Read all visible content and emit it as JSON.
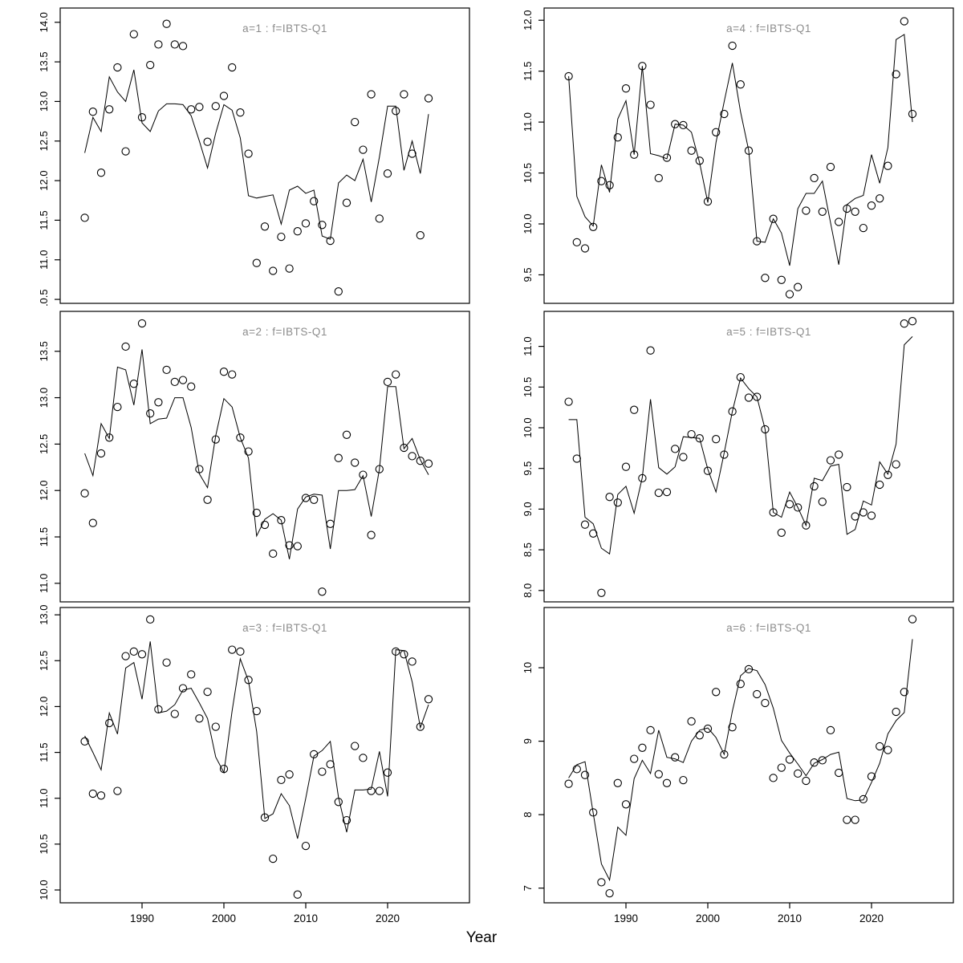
{
  "figure": {
    "xlabel": "Year"
  },
  "chart_data": {
    "type": "line",
    "grid": "3 rows x 2 columns, shared Year axis",
    "xlabel": "Year",
    "x": [
      1983,
      1984,
      1985,
      1986,
      1987,
      1988,
      1989,
      1990,
      1991,
      1992,
      1993,
      1994,
      1995,
      1996,
      1997,
      1998,
      1999,
      2000,
      2001,
      2002,
      2003,
      2004,
      2005,
      2006,
      2007,
      2008,
      2009,
      2010,
      2011,
      2012,
      2013,
      2014,
      2015,
      2016,
      2017,
      2018,
      2019,
      2020,
      2021,
      2022,
      2023,
      2024,
      2025
    ],
    "x_ticks": [
      1990,
      2000,
      2010,
      2020
    ],
    "x_range": [
      1980,
      2030
    ],
    "legend": {
      "points": "observed survey index (open circles)",
      "line": "fitted values (solid line)"
    },
    "panels": [
      {
        "title": "a=1 : f=IBTS-Q1",
        "ylim": [
          10.45,
          14.18
        ],
        "yticks": [
          "10.5",
          "11.0",
          "11.5",
          "12.0",
          "12.5",
          "13.0",
          "13.5",
          "14.0"
        ],
        "observed": [
          11.53,
          12.87,
          12.1,
          12.9,
          13.43,
          12.37,
          13.85,
          12.8,
          13.46,
          13.72,
          13.98,
          13.72,
          13.7,
          12.9,
          12.93,
          12.49,
          12.94,
          13.07,
          13.43,
          12.86,
          12.34,
          10.96,
          11.42,
          10.86,
          11.29,
          10.89,
          11.36,
          11.46,
          11.74,
          11.44,
          11.24,
          10.6,
          11.72,
          12.74,
          12.39,
          13.09,
          11.52,
          12.09,
          12.88,
          13.09,
          12.34,
          11.31,
          13.04
        ],
        "fitted": [
          12.35,
          12.8,
          12.62,
          13.31,
          13.12,
          13.0,
          13.4,
          12.73,
          12.62,
          12.88,
          12.97,
          12.97,
          12.96,
          12.82,
          12.5,
          12.16,
          12.6,
          12.96,
          12.89,
          12.54,
          11.81,
          11.78,
          11.8,
          11.82,
          11.45,
          11.88,
          11.93,
          11.84,
          11.88,
          11.3,
          11.26,
          11.97,
          12.07,
          12.0,
          12.27,
          11.73,
          12.3,
          12.94,
          12.94,
          12.13,
          12.5,
          12.09,
          12.84
        ]
      },
      {
        "title": "a=2 : f=IBTS-Q1",
        "ylim": [
          10.8,
          13.93
        ],
        "yticks": [
          "11.0",
          "11.5",
          "12.0",
          "12.5",
          "13.0",
          "13.5"
        ],
        "observed": [
          11.97,
          11.65,
          12.4,
          12.57,
          12.9,
          13.55,
          13.15,
          13.8,
          12.83,
          12.95,
          13.3,
          13.17,
          13.19,
          13.12,
          12.23,
          11.9,
          12.55,
          13.28,
          13.25,
          12.57,
          12.42,
          11.76,
          11.63,
          11.32,
          11.68,
          11.41,
          11.4,
          11.92,
          11.9,
          10.91,
          11.64,
          12.35,
          12.6,
          12.3,
          12.17,
          11.52,
          12.23,
          13.17,
          13.25,
          12.46,
          12.37,
          12.32,
          12.29
        ],
        "fitted": [
          12.4,
          12.16,
          12.72,
          12.56,
          13.33,
          13.3,
          12.92,
          13.52,
          12.72,
          12.77,
          12.78,
          13.0,
          13.0,
          12.68,
          12.18,
          12.03,
          12.59,
          12.99,
          12.9,
          12.57,
          12.35,
          11.51,
          11.69,
          11.75,
          11.68,
          11.26,
          11.8,
          11.93,
          11.96,
          11.95,
          11.37,
          12.0,
          12.0,
          12.01,
          12.16,
          11.72,
          12.23,
          13.12,
          13.12,
          12.45,
          12.56,
          12.33,
          12.17
        ]
      },
      {
        "title": "a=3 : f=IBTS-Q1",
        "ylim": [
          9.86,
          13.08
        ],
        "yticks": [
          "10.0",
          "10.5",
          "11.0",
          "11.5",
          "12.0",
          "12.5",
          "13.0"
        ],
        "observed": [
          11.62,
          11.05,
          11.03,
          11.82,
          11.08,
          12.55,
          12.6,
          12.57,
          12.95,
          11.97,
          12.48,
          11.92,
          12.2,
          12.35,
          11.87,
          12.16,
          11.78,
          11.32,
          12.62,
          12.6,
          12.29,
          11.95,
          10.79,
          10.34,
          11.2,
          11.26,
          9.95,
          10.48,
          11.48,
          11.29,
          11.37,
          10.96,
          10.76,
          11.57,
          11.44,
          11.08,
          11.08,
          11.28,
          12.6,
          12.57,
          12.49,
          11.78,
          12.08
        ],
        "fitted": [
          11.68,
          11.5,
          11.31,
          11.93,
          11.7,
          12.42,
          12.48,
          12.08,
          12.71,
          11.93,
          11.95,
          12.02,
          12.18,
          12.2,
          12.04,
          11.87,
          11.45,
          11.28,
          11.95,
          12.52,
          12.28,
          11.73,
          10.78,
          10.83,
          11.05,
          10.92,
          10.56,
          11.0,
          11.46,
          11.52,
          11.62,
          11.01,
          10.63,
          11.09,
          11.09,
          11.1,
          11.51,
          11.02,
          12.62,
          12.61,
          12.27,
          11.77,
          12.02
        ]
      },
      {
        "title": "a=4 : f=IBTS-Q1",
        "ylim": [
          9.22,
          12.12
        ],
        "yticks": [
          "9.5",
          "10.0",
          "10.5",
          "11.0",
          "11.5",
          "12.0"
        ],
        "observed": [
          11.45,
          9.82,
          9.76,
          9.97,
          10.42,
          10.38,
          10.85,
          11.33,
          10.68,
          11.55,
          11.17,
          10.45,
          10.65,
          10.98,
          10.97,
          10.72,
          10.62,
          10.22,
          10.9,
          11.08,
          11.75,
          11.37,
          10.72,
          9.83,
          9.47,
          10.05,
          9.45,
          9.31,
          9.38,
          10.13,
          10.45,
          10.12,
          10.56,
          10.02,
          10.15,
          10.12,
          9.96,
          10.18,
          10.25,
          10.57,
          11.47,
          11.99,
          11.08
        ],
        "fitted": [
          11.45,
          10.27,
          10.07,
          9.98,
          10.58,
          10.31,
          11.03,
          11.21,
          10.68,
          11.55,
          10.69,
          10.67,
          10.64,
          10.98,
          10.97,
          10.9,
          10.6,
          10.21,
          10.8,
          11.2,
          11.58,
          11.1,
          10.72,
          9.83,
          9.82,
          10.05,
          9.91,
          9.59,
          10.15,
          10.3,
          10.3,
          10.42,
          10.01,
          9.6,
          10.19,
          10.25,
          10.28,
          10.68,
          10.4,
          10.75,
          11.81,
          11.86,
          11.0
        ]
      },
      {
        "title": "a=5 : f=IBTS-Q1",
        "ylim": [
          7.86,
          11.43
        ],
        "yticks": [
          "8.0",
          "8.5",
          "9.0",
          "9.5",
          "10.0",
          "10.5",
          "11.0"
        ],
        "observed": [
          10.32,
          9.62,
          8.81,
          8.7,
          7.97,
          9.15,
          9.08,
          9.52,
          10.22,
          9.38,
          10.95,
          9.2,
          9.21,
          9.74,
          9.64,
          9.92,
          9.87,
          9.47,
          9.86,
          9.67,
          10.2,
          10.62,
          10.37,
          10.38,
          9.98,
          8.96,
          8.71,
          9.06,
          9.02,
          8.8,
          9.28,
          9.09,
          9.6,
          9.67,
          9.27,
          8.91,
          8.96,
          8.92,
          9.3,
          9.42,
          9.55,
          11.28,
          11.31
        ],
        "fitted": [
          10.1,
          10.1,
          8.9,
          8.82,
          8.52,
          8.45,
          9.18,
          9.28,
          8.95,
          9.39,
          10.35,
          9.51,
          9.43,
          9.52,
          9.89,
          9.88,
          9.87,
          9.49,
          9.21,
          9.69,
          10.2,
          10.61,
          10.48,
          10.38,
          9.98,
          8.96,
          8.9,
          9.21,
          9.02,
          8.8,
          9.38,
          9.35,
          9.53,
          9.55,
          8.69,
          8.75,
          9.1,
          9.05,
          9.58,
          9.43,
          9.8,
          11.02,
          11.12
        ]
      },
      {
        "title": "a=6 : f=IBTS-Q1",
        "ylim": [
          6.8,
          10.82
        ],
        "yticks": [
          "7",
          "8",
          "9",
          "10"
        ],
        "observed": [
          8.42,
          8.62,
          8.54,
          8.03,
          7.08,
          6.93,
          8.43,
          8.14,
          8.76,
          8.91,
          9.15,
          8.55,
          8.43,
          8.78,
          8.47,
          9.27,
          9.08,
          9.17,
          9.67,
          8.82,
          9.19,
          9.78,
          9.98,
          9.64,
          9.52,
          8.5,
          8.64,
          8.75,
          8.56,
          8.46,
          8.71,
          8.74,
          9.15,
          8.57,
          7.93,
          7.93,
          8.21,
          8.52,
          8.93,
          8.88,
          9.4,
          9.67,
          10.66
        ],
        "fitted": [
          8.5,
          8.68,
          8.72,
          8.02,
          7.33,
          7.11,
          7.83,
          7.72,
          8.49,
          8.74,
          8.56,
          9.15,
          8.78,
          8.76,
          8.71,
          9.0,
          9.15,
          9.18,
          9.05,
          8.82,
          9.41,
          9.89,
          9.99,
          9.96,
          9.77,
          9.45,
          9.01,
          8.84,
          8.69,
          8.53,
          8.7,
          8.75,
          8.82,
          8.85,
          8.22,
          8.19,
          8.2,
          8.44,
          8.7,
          9.1,
          9.28,
          9.39,
          10.39
        ]
      }
    ]
  },
  "styles": {
    "background": "#ffffff",
    "axis_color": "#000000",
    "point_color": "#000000",
    "line_color": "#000000",
    "title_color": "#8c8c8c"
  }
}
